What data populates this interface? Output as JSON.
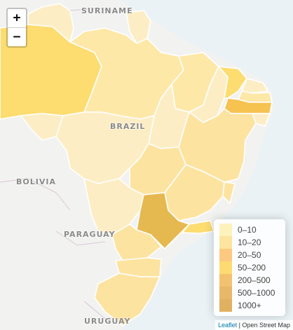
{
  "labels": {
    "suriname": "SURINAME",
    "brazil": "BRAZIL",
    "bolivia": "BOLIVIA",
    "paraguay": "PARAGUAY",
    "uruguay": "URUGUAY"
  },
  "zoom": {
    "in": "+",
    "out": "−"
  },
  "legend": {
    "items": [
      {
        "label": "0–10",
        "color": "#FFEDA0"
      },
      {
        "label": "10–20",
        "color": "#FED976"
      },
      {
        "label": "20–50",
        "color": "#FEB24C"
      },
      {
        "label": "50–200",
        "color": "#FFCC33"
      },
      {
        "label": "200–500",
        "color": "#F0A830"
      },
      {
        "label": "500–1000",
        "color": "#E09A28"
      },
      {
        "label": "1000+",
        "color": "#D4901E"
      }
    ]
  },
  "attribution": {
    "link": "Leaflet",
    "text": " | Open Street Map"
  }
}
